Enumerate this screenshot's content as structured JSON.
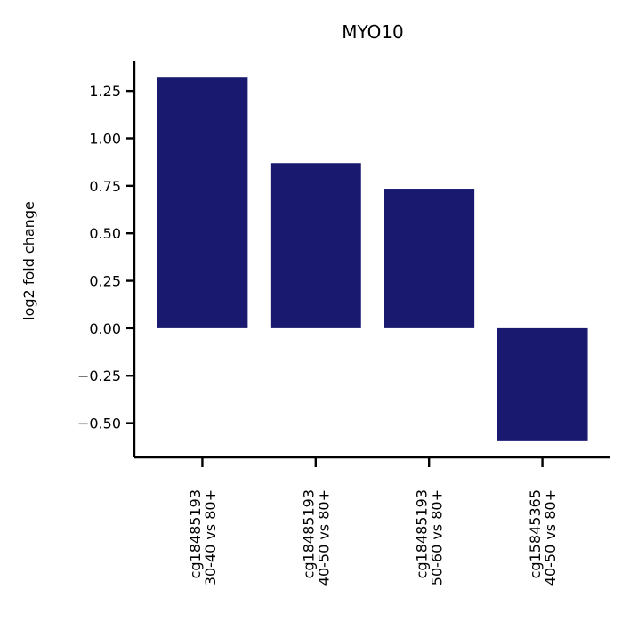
{
  "chart_data": {
    "type": "bar",
    "title": "MYO10",
    "xlabel": "",
    "ylabel": "log2 fold change",
    "categories": [
      [
        "cg18485193",
        "30-40 vs 80+"
      ],
      [
        "cg18485193",
        "40-50 vs 80+"
      ],
      [
        "cg18485193",
        "50-60 vs 80+"
      ],
      [
        "cg15845365",
        "40-50 vs 80+"
      ]
    ],
    "values": [
      1.32,
      0.87,
      0.735,
      -0.595
    ],
    "ylim": [
      -0.68,
      1.41
    ],
    "yticks": [
      -0.5,
      -0.25,
      0.0,
      0.25,
      0.5,
      0.75,
      1.0,
      1.25
    ],
    "ytick_labels": [
      "−0.50",
      "−0.25",
      "0.00",
      "0.25",
      "0.50",
      "0.75",
      "1.00",
      "1.25"
    ],
    "bar_color": "#191970",
    "grid": false,
    "legend": "none"
  }
}
